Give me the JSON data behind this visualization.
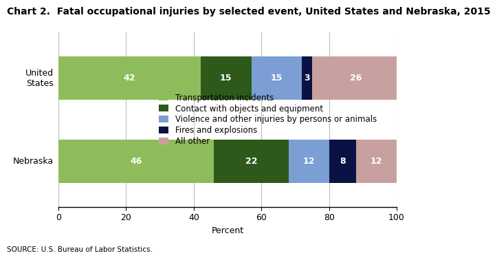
{
  "title": "Chart 2.  Fatal occupational injuries by selected event, United States and Nebraska, 2015",
  "categories": [
    "United States",
    "Nebraska"
  ],
  "ytick_labels": [
    "United\nStates",
    "Nebraska"
  ],
  "segments": [
    {
      "label": "Transportation incidents",
      "color": "#8fbc5a",
      "values": [
        42,
        46
      ]
    },
    {
      "label": "Contact with objects and equipment",
      "color": "#2d5a1b",
      "values": [
        15,
        22
      ]
    },
    {
      "label": "Violence and other injuries by persons or animals",
      "color": "#7b9fd4",
      "values": [
        15,
        12
      ]
    },
    {
      "label": "Fires and explosions",
      "color": "#0a1244",
      "values": [
        3,
        8
      ]
    },
    {
      "label": "All other",
      "color": "#c9a0a0",
      "values": [
        26,
        12
      ]
    }
  ],
  "xlabel": "Percent",
  "xlim": [
    0,
    100
  ],
  "xticks": [
    0,
    20,
    40,
    60,
    80,
    100
  ],
  "source": "SOURCE: U.S. Bureau of Labor Statistics.",
  "background_color": "#ffffff",
  "bar_height": 0.52,
  "label_fontsize": 9,
  "title_fontsize": 10,
  "legend_fontsize": 8.5,
  "grid_color": "#bbbbbb"
}
